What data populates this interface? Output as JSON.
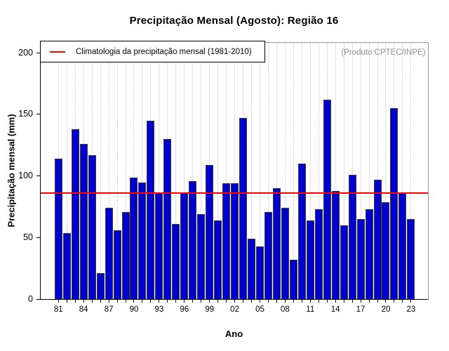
{
  "title": "Precipitação Mensal (Agosto): Região 16",
  "watermark": "(Produto:CPTEC/INPE)",
  "legend": {
    "label": "Climatologia da precipitação mensal (1981-2010)",
    "line_color": "#FF0000"
  },
  "chart_data": {
    "type": "bar",
    "title": "Precipitação Mensal (Agosto): Região 16",
    "xlabel": "Ano",
    "ylabel": "Precipitação mensal (mm)",
    "ylim": [
      0,
      200
    ],
    "yticks": [
      0,
      50,
      100,
      150,
      200
    ],
    "grid": "vertical-dotted",
    "legend_position": "top-left",
    "bar_color": "#0000CD",
    "bar_border_color": "#3c3c3c",
    "categories": [
      1981,
      1982,
      1983,
      1984,
      1985,
      1986,
      1987,
      1988,
      1989,
      1990,
      1991,
      1992,
      1993,
      1994,
      1995,
      1996,
      1997,
      1998,
      1999,
      2000,
      2001,
      2002,
      2003,
      2004,
      2005,
      2006,
      2007,
      2008,
      2009,
      2010,
      2011,
      2012,
      2013,
      2014,
      2015,
      2016,
      2017,
      2018,
      2019,
      2020,
      2021,
      2022,
      2023
    ],
    "values": [
      113,
      53,
      137,
      125,
      116,
      20,
      73,
      55,
      70,
      98,
      94,
      144,
      86,
      129,
      60,
      85,
      95,
      68,
      108,
      63,
      93,
      93,
      146,
      48,
      42,
      70,
      89,
      73,
      31,
      109,
      63,
      72,
      161,
      87,
      59,
      100,
      64,
      72,
      96,
      78,
      154,
      85,
      64
    ],
    "x_tick_labels": [
      "81",
      "84",
      "87",
      "90",
      "93",
      "96",
      "99",
      "02",
      "05",
      "08",
      "11",
      "14",
      "17",
      "20",
      "23"
    ],
    "x_tick_label_step": 3,
    "climatology_line": {
      "value": 86,
      "color": "#FF0000",
      "label": "Climatologia da precipitação mensal (1981-2010)"
    },
    "annotation": "(Produto:CPTEC/INPE)"
  }
}
